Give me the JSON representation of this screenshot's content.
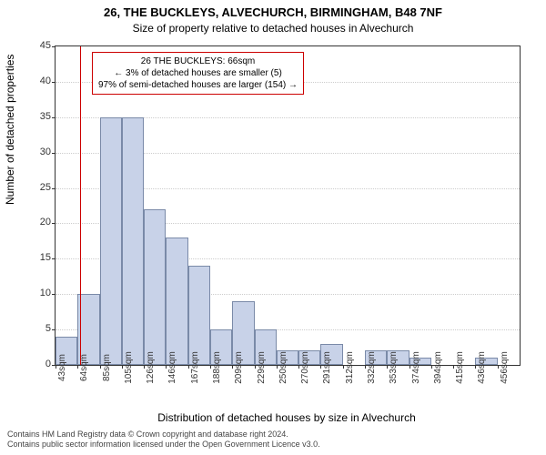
{
  "title_main": "26, THE BUCKLEYS, ALVECHURCH, BIRMINGHAM, B48 7NF",
  "title_sub": "Size of property relative to detached houses in Alvechurch",
  "ylabel": "Number of detached properties",
  "xlabel": "Distribution of detached houses by size in Alvechurch",
  "footer_line1": "Contains HM Land Registry data © Crown copyright and database right 2024.",
  "footer_line2": "Contains public sector information licensed under the Open Government Licence v3.0.",
  "chart": {
    "type": "histogram",
    "ylim": [
      0,
      45
    ],
    "ytick_step": 5,
    "yticks": [
      0,
      5,
      10,
      15,
      20,
      25,
      30,
      35,
      40,
      45
    ],
    "x_start": 43,
    "x_bin_width": 20.65,
    "n_bins": 21,
    "xtick_labels": [
      "43sqm",
      "64sqm",
      "85sqm",
      "105sqm",
      "126sqm",
      "146sqm",
      "167sqm",
      "188sqm",
      "209sqm",
      "229sqm",
      "250sqm",
      "270sqm",
      "291sqm",
      "312sqm",
      "332sqm",
      "353sqm",
      "374sqm",
      "394sqm",
      "415sqm",
      "436sqm",
      "456sqm"
    ],
    "values": [
      4,
      10,
      35,
      35,
      22,
      18,
      14,
      5,
      9,
      5,
      2,
      2,
      3,
      0,
      2,
      2,
      1,
      0,
      0,
      1,
      0
    ],
    "bar_color": "#c8d2e8",
    "bar_border": "#7a8aa8",
    "grid_color": "#cccccc",
    "background_color": "#ffffff",
    "marker_x_sqm": 66,
    "marker_color": "#cc0000",
    "annotation": {
      "line1": "26 THE BUCKLEYS: 66sqm",
      "line2": "← 3% of detached houses are smaller (5)",
      "line3": "97% of semi-detached houses are larger (154) →",
      "border_color": "#cc0000"
    }
  }
}
